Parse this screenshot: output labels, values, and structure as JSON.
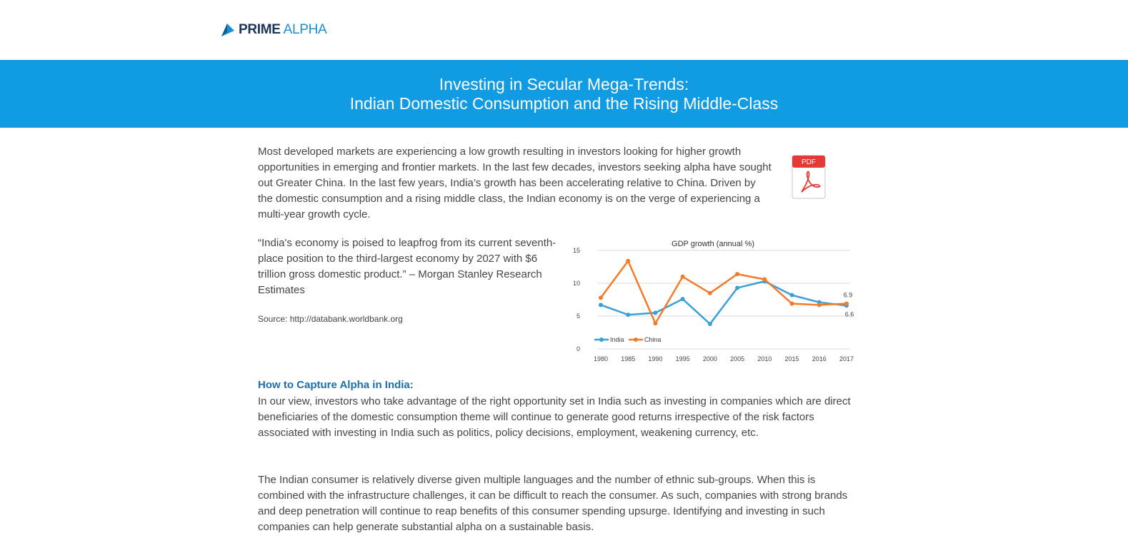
{
  "brand": {
    "name_bold": "PRIME",
    "name_light": "ALPHA"
  },
  "banner": {
    "line1": "Investing in Secular Mega-Trends:",
    "line2": "Indian Domestic Consumption and the Rising Middle-Class"
  },
  "intro": "Most developed markets are experiencing a low growth resulting in investors looking for higher growth opportunities in emerging and frontier markets.  In the last few decades, investors seeking alpha have sought out Greater China.  In the last few years, India’s growth has been accelerating relative to China.  Driven by the domestic consumption and a rising middle class, the Indian economy is on the verge of experiencing a multi-year growth cycle.",
  "pdf_icon": {
    "label": "PDF",
    "icon": "pdf-file-icon"
  },
  "quote": "“India's economy is poised to leapfrog from its current seventh-place position to the third-largest economy by 2027 with $6 trillion gross domestic product.” – Morgan Stanley Research Estimates",
  "source": "Source: http://databank.worldbank.org",
  "section_heading": "How to Capture Alpha in India:",
  "para2": "In our view, investors who take advantage of the right opportunity set in India such as investing in companies which are direct beneficiaries of the domestic consumption theme will continue to generate good returns irrespective of the risk factors associated with investing in India such as politics, policy decisions, employment, weakening currency, etc.",
  "para3": "The Indian consumer is relatively diverse given multiple languages and the number of ethnic sub-groups.  When this is combined with the infrastructure challenges, it can be difficult to reach the consumer. As such, companies with strong brands and deep penetration will continue to reap benefits of this consumer spending upsurge.  Identifying and investing in such companies can help generate substantial alpha on a sustainable basis.",
  "colors": {
    "banner": "#109be3",
    "heading": "#1a6fad",
    "india": "#3a9fd8",
    "china": "#f27b2a",
    "pdf_red": "#e53935"
  },
  "chart_data": {
    "type": "line",
    "title": "GDP growth (annual %)",
    "categories": [
      "1980",
      "1985",
      "1990",
      "1995",
      "2000",
      "2005",
      "2010",
      "2015",
      "2016",
      "2017"
    ],
    "series": [
      {
        "name": "India",
        "values": [
          6.7,
          5.2,
          5.5,
          7.6,
          3.8,
          9.3,
          10.3,
          8.2,
          7.1,
          6.6
        ]
      },
      {
        "name": "China",
        "values": [
          7.8,
          13.4,
          3.9,
          11.0,
          8.5,
          11.4,
          10.6,
          6.9,
          6.7,
          6.9
        ]
      }
    ],
    "annotations": [
      "6.9",
      "6.6"
    ],
    "yticks": [
      "0",
      "5",
      "10",
      "15"
    ],
    "ylim": [
      0,
      15
    ],
    "grid": true,
    "legend": "bottom-left"
  }
}
